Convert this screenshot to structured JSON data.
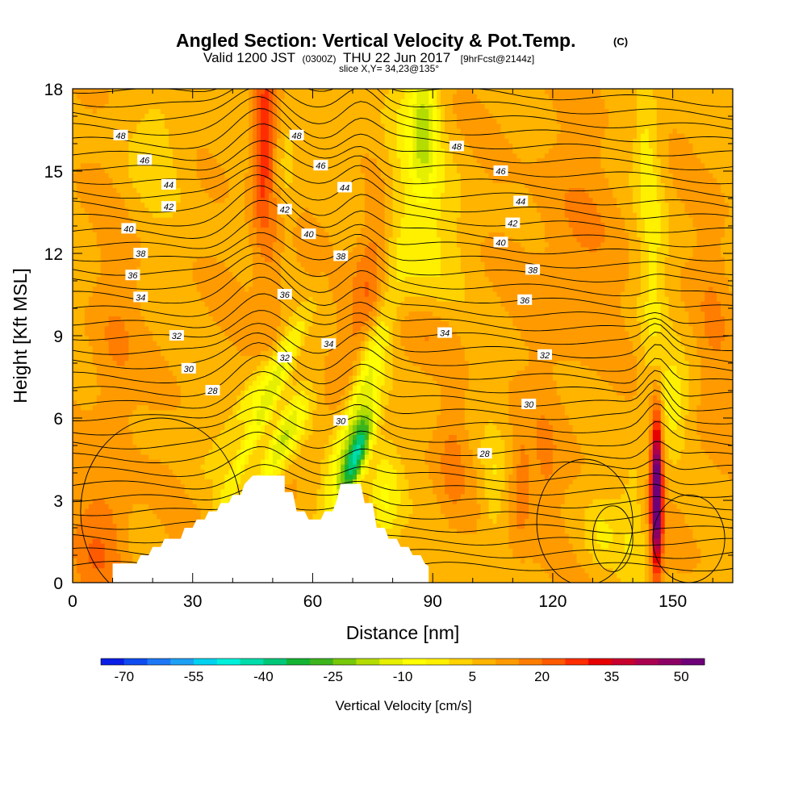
{
  "header": {
    "title": "Angled Section: Vertical Velocity & Pot.Temp.",
    "title_unit": "(C)",
    "valid_prefix": "Valid 1200 JST",
    "valid_z": "(0300Z)",
    "valid_date": "THU 22 Jun 2017",
    "valid_fcst": "[9hrFcst@2144z]",
    "slice": "slice X,Y= 34,23@135°"
  },
  "chart_data": {
    "type": "heatmap",
    "xlabel": "Distance [nm]",
    "ylabel": "Height [Kft MSL]",
    "xlim": [
      0,
      165
    ],
    "ylim": [
      0,
      18
    ],
    "x_ticks": [
      "0",
      "30",
      "60",
      "90",
      "120",
      "150"
    ],
    "x_tick_values": [
      0,
      30,
      60,
      90,
      120,
      150
    ],
    "y_ticks": [
      "0",
      "3",
      "6",
      "9",
      "12",
      "15",
      "18"
    ],
    "y_tick_values": [
      0,
      3,
      6,
      9,
      12,
      15,
      18
    ],
    "field": "Vertical Velocity [cm/s]",
    "contour_field": "Potential Temperature (C)",
    "colorbar": {
      "title": "Vertical Velocity [cm/s]",
      "labels": [
        "-70",
        "-55",
        "-40",
        "-25",
        "-10",
        "5",
        "20",
        "35",
        "50"
      ],
      "label_values": [
        -70,
        -55,
        -40,
        -25,
        -10,
        5,
        20,
        35,
        50
      ],
      "min": -75,
      "step": 5,
      "colors": [
        "#0a1ee6",
        "#0f4cf0",
        "#1e78f5",
        "#1ea0f5",
        "#00d2f0",
        "#00f0dc",
        "#00dcaa",
        "#00c878",
        "#14b432",
        "#3cb41e",
        "#78c80a",
        "#b4dc00",
        "#e6ef00",
        "#ffff00",
        "#fff000",
        "#ffd200",
        "#ffb400",
        "#ff9b00",
        "#ff7d00",
        "#ff5a00",
        "#ff2d00",
        "#e60000",
        "#c8002d",
        "#aa0050",
        "#8c0064",
        "#6e0078"
      ]
    },
    "potential_temperature_labels": [
      "48",
      "48",
      "48",
      "46",
      "46",
      "46",
      "44",
      "44",
      "44",
      "42",
      "42",
      "42",
      "40",
      "40",
      "40",
      "38",
      "38",
      "38",
      "36",
      "36",
      "36",
      "34",
      "34",
      "34",
      "32",
      "32",
      "32",
      "30",
      "30",
      "30",
      "28",
      "28"
    ],
    "terrain": [
      [
        10,
        0.7
      ],
      [
        13,
        0.7
      ],
      [
        16,
        0.7
      ],
      [
        17,
        1.0
      ],
      [
        19,
        1.0
      ],
      [
        20,
        1.3
      ],
      [
        22,
        1.3
      ],
      [
        23,
        1.6
      ],
      [
        27,
        1.6
      ],
      [
        28,
        2.0
      ],
      [
        30,
        2.0
      ],
      [
        31,
        2.3
      ],
      [
        33,
        2.3
      ],
      [
        34,
        2.6
      ],
      [
        36,
        2.6
      ],
      [
        37,
        2.9
      ],
      [
        39,
        2.9
      ],
      [
        40,
        3.2
      ],
      [
        42,
        3.2
      ],
      [
        43,
        3.6
      ],
      [
        45,
        3.9
      ],
      [
        52,
        3.9
      ],
      [
        53,
        3.9
      ],
      [
        53,
        3.3
      ],
      [
        55,
        3.3
      ],
      [
        56,
        2.6
      ],
      [
        58,
        2.6
      ],
      [
        59,
        2.3
      ],
      [
        62,
        2.3
      ],
      [
        63,
        2.6
      ],
      [
        65,
        2.6
      ],
      [
        66,
        3.0
      ],
      [
        67,
        3.6
      ],
      [
        72,
        3.6
      ],
      [
        73,
        2.9
      ],
      [
        75,
        2.9
      ],
      [
        76,
        2.0
      ],
      [
        78,
        2.0
      ],
      [
        79,
        1.6
      ],
      [
        81,
        1.6
      ],
      [
        82,
        1.3
      ],
      [
        84,
        1.3
      ],
      [
        85,
        1.0
      ],
      [
        87,
        1.0
      ],
      [
        88,
        0.7
      ],
      [
        89,
        0.6
      ]
    ],
    "vertical_velocity_features": [
      {
        "x": 48,
        "y": 16.0,
        "sx": 2.0,
        "sy": 2.6,
        "slant": 0.25,
        "w": 20
      },
      {
        "x": 50,
        "y": 11.5,
        "sx": 2.0,
        "sy": 2.5,
        "slant": 0.25,
        "w": 8
      },
      {
        "x": 22,
        "y": 16.0,
        "sx": 6.0,
        "sy": 2.0,
        "slant": 0.3,
        "w": -6
      },
      {
        "x": 53,
        "y": 15.5,
        "sx": 2.5,
        "sy": 2.5,
        "slant": 0.3,
        "w": -7
      },
      {
        "x": 46,
        "y": 7.0,
        "sx": 2.5,
        "sy": 1.5,
        "slant": 4.0,
        "w": -14
      },
      {
        "x": 52,
        "y": 5.0,
        "sx": 2.5,
        "sy": 1.3,
        "slant": 3.0,
        "w": -25
      },
      {
        "x": 47,
        "y": 6.0,
        "sx": 1.8,
        "sy": 2.2,
        "slant": 3.0,
        "w": -20
      },
      {
        "x": 71,
        "y": 4.6,
        "sx": 1.8,
        "sy": 1.2,
        "slant": 2.0,
        "w": -45
      },
      {
        "x": 71,
        "y": 6.3,
        "sx": 2.4,
        "sy": 2.5,
        "slant": 2.0,
        "w": -24
      },
      {
        "x": 78,
        "y": 3.0,
        "sx": 3.0,
        "sy": 1.5,
        "slant": 0.0,
        "w": -14
      },
      {
        "x": 74,
        "y": 11.0,
        "sx": 3.0,
        "sy": 2.5,
        "slant": 1.0,
        "w": 12
      },
      {
        "x": 88,
        "y": 9.2,
        "sx": 6.0,
        "sy": 1.0,
        "slant": 0.0,
        "w": 8
      },
      {
        "x": 82,
        "y": 15.0,
        "sx": 4.0,
        "sy": 3.5,
        "slant": 0.0,
        "w": -10
      },
      {
        "x": 88,
        "y": 16.8,
        "sx": 2.5,
        "sy": 1.8,
        "slant": 0.0,
        "w": -22
      },
      {
        "x": 90,
        "y": 12.0,
        "sx": 5.0,
        "sy": 2.5,
        "slant": 0.0,
        "w": -9
      },
      {
        "x": 95,
        "y": 4.5,
        "sx": 2.5,
        "sy": 1.5,
        "slant": 0.0,
        "w": 7
      },
      {
        "x": 105,
        "y": 3.5,
        "sx": 2.0,
        "sy": 1.5,
        "slant": 0.0,
        "w": -8
      },
      {
        "x": 112,
        "y": 3.5,
        "sx": 2.0,
        "sy": 1.5,
        "slant": 0.0,
        "w": 10
      },
      {
        "x": 118,
        "y": 3.8,
        "sx": 2.5,
        "sy": 1.8,
        "slant": 0.0,
        "w": 6
      },
      {
        "x": 132,
        "y": 1.8,
        "sx": 3.5,
        "sy": 1.0,
        "slant": 0.0,
        "w": -8
      },
      {
        "x": 140,
        "y": 2.3,
        "sx": 2.5,
        "sy": 2.0,
        "slant": 0.0,
        "w": -7
      },
      {
        "x": 146,
        "y": 3.3,
        "sx": 1.0,
        "sy": 2.0,
        "slant": 0.0,
        "w": 55
      },
      {
        "x": 145,
        "y": 11.5,
        "sx": 2.5,
        "sy": 3.5,
        "slant": 0.0,
        "w": -10
      },
      {
        "x": 143,
        "y": 16.0,
        "sx": 2.0,
        "sy": 1.5,
        "slant": 0.0,
        "w": -8
      },
      {
        "x": 150,
        "y": 6.5,
        "sx": 2.5,
        "sy": 1.2,
        "slant": 0.0,
        "w": -12
      },
      {
        "x": 125,
        "y": 12.0,
        "sx": 7.0,
        "sy": 3.0,
        "slant": 0.0,
        "w": 6
      },
      {
        "x": 160,
        "y": 9.0,
        "sx": 3.0,
        "sy": 3.0,
        "slant": 0.0,
        "w": 5
      },
      {
        "x": 7,
        "y": 1.5,
        "sx": 5.0,
        "sy": 1.5,
        "slant": 0.0,
        "w": 10
      },
      {
        "x": 10,
        "y": 8.0,
        "sx": 4.0,
        "sy": 3.0,
        "slant": 0.0,
        "w": 6
      }
    ]
  }
}
